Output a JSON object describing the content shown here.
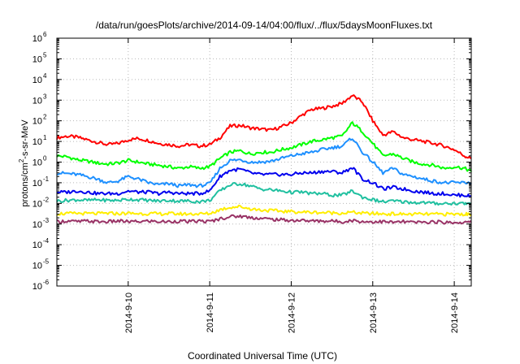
{
  "chart_data": {
    "type": "line",
    "title": "/data/run/goesPlots/archive/2014-09-14/04:00/flux/../flux/5daysMoonFluxes.txt",
    "xlabel": "Coordinated Universal Time (UTC)",
    "ylabel": "protons/cm²-s-sr-MeV",
    "ylabel_parts": {
      "base": "protons/cm",
      "sup": "2",
      "rest": "-s-sr-MeV"
    },
    "ylim_log10": [
      -6,
      6
    ],
    "y_ticks": [
      {
        "exp": -6,
        "label": "10",
        "sup": "-6"
      },
      {
        "exp": -5,
        "label": "10",
        "sup": "-5"
      },
      {
        "exp": -4,
        "label": "10",
        "sup": "-4"
      },
      {
        "exp": -3,
        "label": "10",
        "sup": "-3"
      },
      {
        "exp": -2,
        "label": "10",
        "sup": "-2"
      },
      {
        "exp": -1,
        "label": "10",
        "sup": "-1"
      },
      {
        "exp": 0,
        "label": "10",
        "sup": "0"
      },
      {
        "exp": 1,
        "label": "10",
        "sup": "1"
      },
      {
        "exp": 2,
        "label": "10",
        "sup": "2"
      },
      {
        "exp": 3,
        "label": "10",
        "sup": "3"
      },
      {
        "exp": 4,
        "label": "10",
        "sup": "4"
      },
      {
        "exp": 5,
        "label": "10",
        "sup": "5"
      },
      {
        "exp": 6,
        "label": "10",
        "sup": "6"
      }
    ],
    "x_range": [
      "2014-09-09 03:00",
      "2014-09-14 05:00"
    ],
    "x_ticks": [
      "2014-9-10",
      "2014-9-11",
      "2014-9-12",
      "2014-9-13",
      "2014-9-14"
    ],
    "grid": true,
    "x": [
      "2014-09-09 03:00",
      "2014-09-09 06:00",
      "2014-09-09 09:00",
      "2014-09-09 12:00",
      "2014-09-09 15:00",
      "2014-09-09 18:00",
      "2014-09-09 21:00",
      "2014-09-10 00:00",
      "2014-09-10 03:00",
      "2014-09-10 06:00",
      "2014-09-10 09:00",
      "2014-09-10 12:00",
      "2014-09-10 15:00",
      "2014-09-10 18:00",
      "2014-09-10 21:00",
      "2014-09-11 00:00",
      "2014-09-11 03:00",
      "2014-09-11 06:00",
      "2014-09-11 09:00",
      "2014-09-11 12:00",
      "2014-09-11 15:00",
      "2014-09-11 18:00",
      "2014-09-11 21:00",
      "2014-09-12 00:00",
      "2014-09-12 03:00",
      "2014-09-12 06:00",
      "2014-09-12 09:00",
      "2014-09-12 12:00",
      "2014-09-12 15:00",
      "2014-09-12 18:00",
      "2014-09-12 21:00",
      "2014-09-13 00:00",
      "2014-09-13 03:00",
      "2014-09-13 06:00",
      "2014-09-13 09:00",
      "2014-09-13 12:00",
      "2014-09-13 15:00",
      "2014-09-13 18:00",
      "2014-09-13 21:00",
      "2014-09-14 00:00",
      "2014-09-14 03:00",
      "2014-09-14 05:00"
    ],
    "series": [
      {
        "color": "#ff0000",
        "values": [
          15,
          18,
          16,
          12,
          9,
          7,
          8,
          12,
          14,
          11,
          8,
          7,
          6,
          7,
          6,
          7,
          15,
          55,
          60,
          45,
          40,
          35,
          50,
          80,
          180,
          350,
          400,
          500,
          700,
          1700,
          800,
          100,
          20,
          30,
          15,
          12,
          10,
          8,
          6,
          4,
          2,
          1.5
        ]
      },
      {
        "color": "#00ff00",
        "values": [
          2.0,
          1.8,
          1.3,
          1.1,
          0.9,
          0.8,
          0.9,
          1.2,
          1.0,
          0.8,
          0.7,
          0.6,
          0.5,
          0.6,
          0.5,
          0.6,
          1.5,
          3.0,
          3.5,
          2.5,
          3.0,
          3.0,
          4.0,
          5.0,
          7.0,
          10.0,
          12.0,
          15.0,
          18.0,
          80.0,
          30.0,
          8.0,
          2.0,
          2.5,
          1.5,
          1.0,
          0.8,
          0.7,
          0.5,
          0.6,
          0.5,
          0.35
        ]
      },
      {
        "color": "#1e90ff",
        "values": [
          0.3,
          0.28,
          0.25,
          0.2,
          0.15,
          0.1,
          0.12,
          0.2,
          0.15,
          0.1,
          0.08,
          0.09,
          0.07,
          0.08,
          0.07,
          0.09,
          0.5,
          1.2,
          1.3,
          1.0,
          1.0,
          1.1,
          1.5,
          2.0,
          2.5,
          3.0,
          4.0,
          5.0,
          6.0,
          15.0,
          3.0,
          1.0,
          0.3,
          0.5,
          0.25,
          0.2,
          0.15,
          0.12,
          0.1,
          0.1,
          0.1,
          0.1
        ]
      },
      {
        "color": "#0000ee",
        "values": [
          0.035,
          0.035,
          0.04,
          0.035,
          0.03,
          0.03,
          0.03,
          0.04,
          0.035,
          0.035,
          0.03,
          0.035,
          0.03,
          0.03,
          0.03,
          0.04,
          0.2,
          0.4,
          0.45,
          0.3,
          0.25,
          0.25,
          0.25,
          0.25,
          0.3,
          0.3,
          0.35,
          0.35,
          0.3,
          0.55,
          0.15,
          0.1,
          0.05,
          0.06,
          0.05,
          0.04,
          0.035,
          0.03,
          0.03,
          0.025,
          0.025,
          0.022
        ]
      },
      {
        "color": "#20c0a0",
        "values": [
          0.013,
          0.014,
          0.015,
          0.014,
          0.015,
          0.014,
          0.014,
          0.016,
          0.015,
          0.014,
          0.013,
          0.014,
          0.013,
          0.013,
          0.012,
          0.014,
          0.04,
          0.08,
          0.09,
          0.07,
          0.05,
          0.045,
          0.04,
          0.035,
          0.035,
          0.03,
          0.03,
          0.025,
          0.025,
          0.04,
          0.02,
          0.015,
          0.012,
          0.013,
          0.012,
          0.011,
          0.011,
          0.01,
          0.01,
          0.01,
          0.01,
          0.01
        ]
      },
      {
        "color": "#ffee00",
        "values": [
          0.0032,
          0.0032,
          0.0033,
          0.0032,
          0.0032,
          0.0033,
          0.0032,
          0.0033,
          0.0032,
          0.0032,
          0.0031,
          0.0032,
          0.0031,
          0.0031,
          0.0031,
          0.0032,
          0.005,
          0.0065,
          0.007,
          0.0055,
          0.0048,
          0.0045,
          0.0042,
          0.004,
          0.0038,
          0.0037,
          0.0036,
          0.0035,
          0.0034,
          0.0037,
          0.0033,
          0.0032,
          0.0031,
          0.0031,
          0.003,
          0.003,
          0.003,
          0.003,
          0.003,
          0.003,
          0.003,
          0.003
        ]
      },
      {
        "color": "#993366",
        "values": [
          0.0013,
          0.0014,
          0.0013,
          0.0014,
          0.0013,
          0.0013,
          0.0014,
          0.0013,
          0.0013,
          0.0014,
          0.0013,
          0.0013,
          0.0014,
          0.0013,
          0.0014,
          0.0013,
          0.0018,
          0.0023,
          0.0024,
          0.0021,
          0.0019,
          0.0017,
          0.0016,
          0.0015,
          0.0015,
          0.0014,
          0.0014,
          0.0014,
          0.0013,
          0.0015,
          0.0013,
          0.0013,
          0.0013,
          0.0012,
          0.0013,
          0.0012,
          0.0012,
          0.0013,
          0.0012,
          0.0012,
          0.0012,
          0.0012
        ]
      }
    ]
  }
}
